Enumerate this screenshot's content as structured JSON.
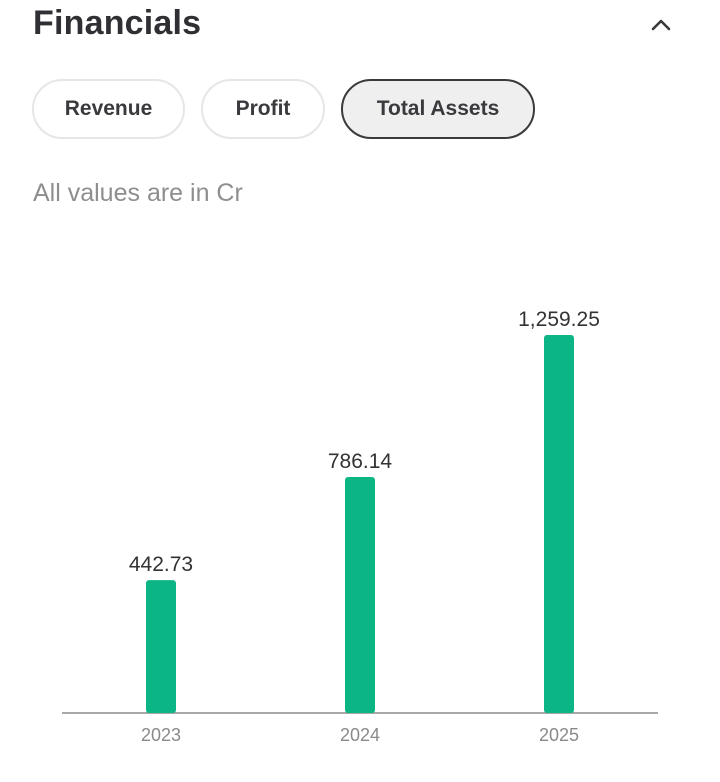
{
  "header": {
    "title": "Financials"
  },
  "tabs": [
    {
      "label": "Revenue",
      "active": false
    },
    {
      "label": "Profit",
      "active": false
    },
    {
      "label": "Total Assets",
      "active": true
    }
  ],
  "subtitle": "All values are in Cr",
  "colors": {
    "bar": "#0bb584",
    "axis": "#8c8c8c"
  },
  "icons": {
    "collapse": "chevron-up-icon"
  },
  "chart_data": {
    "type": "bar",
    "categories": [
      "2023",
      "2024",
      "2025"
    ],
    "values": [
      442.73,
      786.14,
      1259.25
    ],
    "value_labels": [
      "442.73",
      "786.14",
      "1,259.25"
    ],
    "title": "",
    "xlabel": "",
    "ylabel": "",
    "ylim": [
      0,
      1400
    ],
    "grid": false
  }
}
